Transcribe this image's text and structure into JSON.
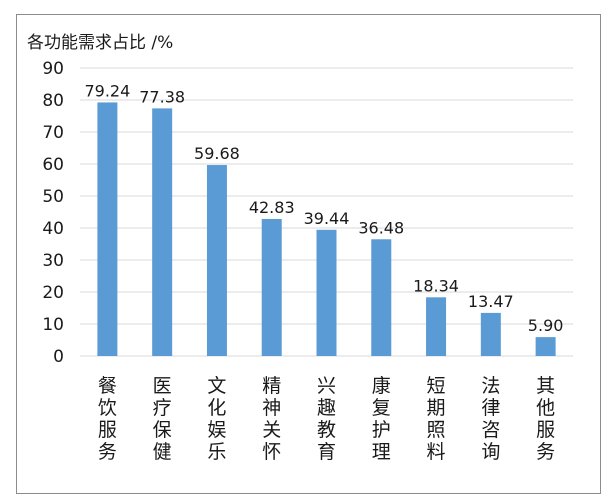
{
  "chart_data": {
    "type": "bar",
    "ylabel": "各功能需求占比 /%",
    "categories": [
      "餐饮服务",
      "医疗保健",
      "文化娱乐",
      "精神关怀",
      "兴趣教育",
      "康复护理",
      "短期照料",
      "法律咨询",
      "其他服务"
    ],
    "values": [
      79.24,
      77.38,
      59.68,
      42.83,
      39.44,
      36.48,
      18.34,
      13.47,
      5.9
    ],
    "value_labels": [
      "79.24",
      "77.38",
      "59.68",
      "42.83",
      "39.44",
      "36.48",
      "18.34",
      "13.47",
      "5.90"
    ],
    "ylim": [
      0,
      90
    ],
    "yticks": [
      0,
      10,
      20,
      30,
      40,
      50,
      60,
      70,
      80,
      90
    ],
    "grid": true,
    "bar_color": "#5b9bd5",
    "grid_color": "#d9d9d9"
  }
}
